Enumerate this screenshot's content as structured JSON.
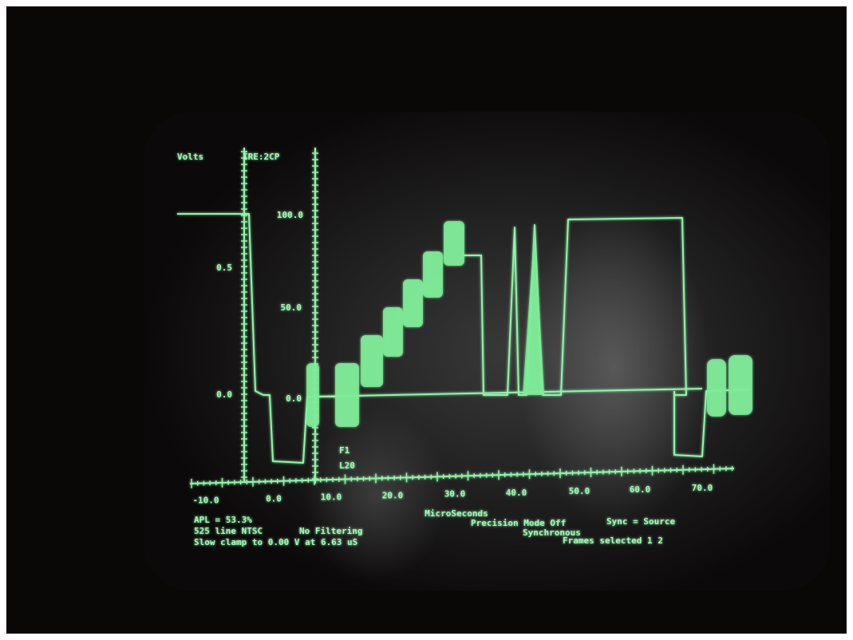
{
  "axes": {
    "left_title": "Volts",
    "right_title": "IRE:2CP",
    "volt_labels": [
      "0.5",
      "0.0"
    ],
    "ire_labels": [
      "100.0",
      "50.0",
      "0.0"
    ],
    "x_labels": [
      "-10.0",
      "0.0",
      "10.0",
      "20.0",
      "30.0",
      "40.0",
      "50.0",
      "60.0",
      "70.0"
    ],
    "x_title": "MicroSeconds"
  },
  "field_line": [
    "F1",
    "L20"
  ],
  "status": {
    "apl": "APL = 53.3%",
    "line_standard": "525 line NTSC",
    "filtering": "No Filtering",
    "clamp": "Slow clamp to 0.00 V at 6.63 uS",
    "precision": "Precision Mode Off",
    "sync_mode": "Synchronous",
    "sync_source": "Sync = Source",
    "frames": "Frames selected 1 2"
  }
}
